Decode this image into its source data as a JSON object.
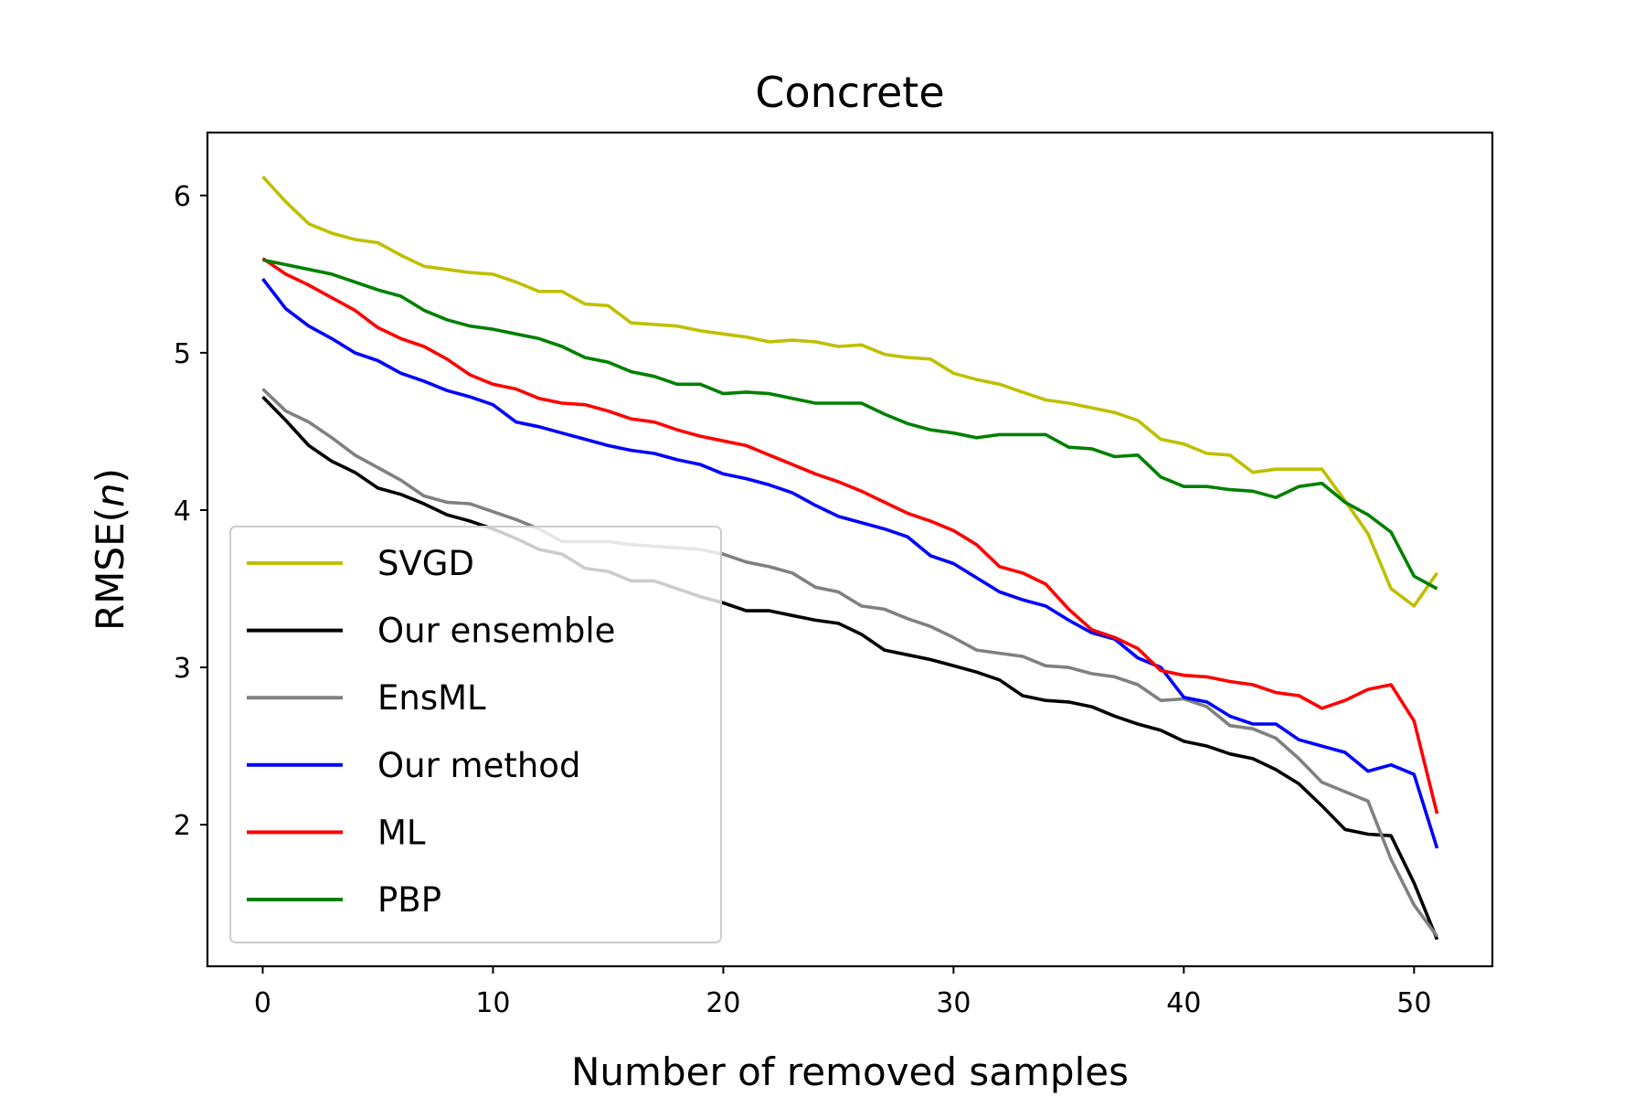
{
  "chart_data": {
    "type": "line",
    "title": "Concrete",
    "xlabel": "Number of removed samples",
    "ylabel": "RMSE(n)",
    "xlim": [
      -2.4,
      53.4
    ],
    "ylim": [
      1.1,
      6.4
    ],
    "xticks": [
      0,
      10,
      20,
      30,
      40,
      50
    ],
    "yticks": [
      2,
      3,
      4,
      5,
      6
    ],
    "grid": false,
    "legend_position": "lower-left",
    "x": [
      0,
      1,
      2,
      3,
      4,
      5,
      6,
      7,
      8,
      9,
      10,
      11,
      12,
      13,
      14,
      15,
      16,
      17,
      18,
      19,
      20,
      21,
      22,
      23,
      24,
      25,
      26,
      27,
      28,
      29,
      30,
      31,
      32,
      33,
      34,
      35,
      36,
      37,
      38,
      39,
      40,
      41,
      42,
      43,
      44,
      45,
      46,
      47,
      48,
      49,
      50,
      51
    ],
    "series": [
      {
        "name": "SVGD",
        "color": "#bfbf00",
        "values": [
          6.12,
          5.96,
          5.82,
          5.76,
          5.72,
          5.7,
          5.62,
          5.55,
          5.53,
          5.51,
          5.5,
          5.45,
          5.39,
          5.39,
          5.31,
          5.3,
          5.19,
          5.18,
          5.17,
          5.14,
          5.12,
          5.1,
          5.07,
          5.08,
          5.07,
          5.04,
          5.05,
          4.99,
          4.97,
          4.96,
          4.87,
          4.83,
          4.8,
          4.75,
          4.7,
          4.68,
          4.65,
          4.62,
          4.57,
          4.45,
          4.42,
          4.36,
          4.35,
          4.24,
          4.26,
          4.26,
          4.26,
          4.06,
          3.85,
          3.5,
          3.39,
          3.6
        ]
      },
      {
        "name": "Our ensemble",
        "color": "#000000",
        "values": [
          4.72,
          4.57,
          4.41,
          4.31,
          4.24,
          4.14,
          4.1,
          4.04,
          3.97,
          3.93,
          3.88,
          3.82,
          3.75,
          3.72,
          3.63,
          3.61,
          3.55,
          3.55,
          3.5,
          3.45,
          3.41,
          3.36,
          3.36,
          3.33,
          3.3,
          3.28,
          3.21,
          3.11,
          3.08,
          3.05,
          3.01,
          2.97,
          2.92,
          2.82,
          2.79,
          2.78,
          2.75,
          2.69,
          2.64,
          2.6,
          2.53,
          2.5,
          2.45,
          2.42,
          2.35,
          2.26,
          2.12,
          1.97,
          1.94,
          1.93,
          1.63,
          1.27
        ]
      },
      {
        "name": "EnsML",
        "color": "#808080",
        "values": [
          4.77,
          4.63,
          4.56,
          4.46,
          4.35,
          4.27,
          4.19,
          4.09,
          4.05,
          4.04,
          3.99,
          3.94,
          3.88,
          3.8,
          3.8,
          3.8,
          3.78,
          3.77,
          3.76,
          3.75,
          3.72,
          3.67,
          3.64,
          3.6,
          3.51,
          3.48,
          3.39,
          3.37,
          3.31,
          3.26,
          3.19,
          3.11,
          3.09,
          3.07,
          3.01,
          3.0,
          2.96,
          2.94,
          2.89,
          2.79,
          2.8,
          2.75,
          2.63,
          2.61,
          2.55,
          2.42,
          2.27,
          2.21,
          2.15,
          1.78,
          1.49,
          1.29
        ]
      },
      {
        "name": "Our method",
        "color": "#0000ff",
        "values": [
          5.47,
          5.28,
          5.17,
          5.09,
          5.0,
          4.95,
          4.87,
          4.82,
          4.76,
          4.72,
          4.67,
          4.56,
          4.53,
          4.49,
          4.45,
          4.41,
          4.38,
          4.36,
          4.32,
          4.29,
          4.23,
          4.2,
          4.16,
          4.11,
          4.03,
          3.96,
          3.92,
          3.88,
          3.83,
          3.71,
          3.66,
          3.57,
          3.48,
          3.43,
          3.39,
          3.3,
          3.22,
          3.18,
          3.06,
          3.0,
          2.81,
          2.78,
          2.69,
          2.64,
          2.64,
          2.54,
          2.5,
          2.46,
          2.34,
          2.38,
          2.32,
          1.85
        ]
      },
      {
        "name": "ML",
        "color": "#ff0000",
        "values": [
          5.6,
          5.5,
          5.43,
          5.35,
          5.27,
          5.16,
          5.09,
          5.04,
          4.96,
          4.86,
          4.8,
          4.77,
          4.71,
          4.68,
          4.67,
          4.63,
          4.58,
          4.56,
          4.51,
          4.47,
          4.44,
          4.41,
          4.35,
          4.29,
          4.23,
          4.18,
          4.12,
          4.05,
          3.98,
          3.93,
          3.87,
          3.78,
          3.64,
          3.6,
          3.53,
          3.37,
          3.24,
          3.19,
          3.12,
          2.98,
          2.95,
          2.94,
          2.91,
          2.89,
          2.84,
          2.82,
          2.74,
          2.79,
          2.86,
          2.89,
          2.66,
          2.07
        ]
      },
      {
        "name": "PBP",
        "color": "#008000",
        "values": [
          5.59,
          5.56,
          5.53,
          5.5,
          5.45,
          5.4,
          5.36,
          5.27,
          5.21,
          5.17,
          5.15,
          5.12,
          5.09,
          5.04,
          4.97,
          4.94,
          4.88,
          4.85,
          4.8,
          4.8,
          4.74,
          4.75,
          4.74,
          4.71,
          4.68,
          4.68,
          4.68,
          4.61,
          4.55,
          4.51,
          4.49,
          4.46,
          4.48,
          4.48,
          4.48,
          4.4,
          4.39,
          4.34,
          4.35,
          4.21,
          4.15,
          4.15,
          4.13,
          4.12,
          4.08,
          4.15,
          4.17,
          4.05,
          3.97,
          3.86,
          3.58,
          3.5
        ]
      }
    ]
  }
}
